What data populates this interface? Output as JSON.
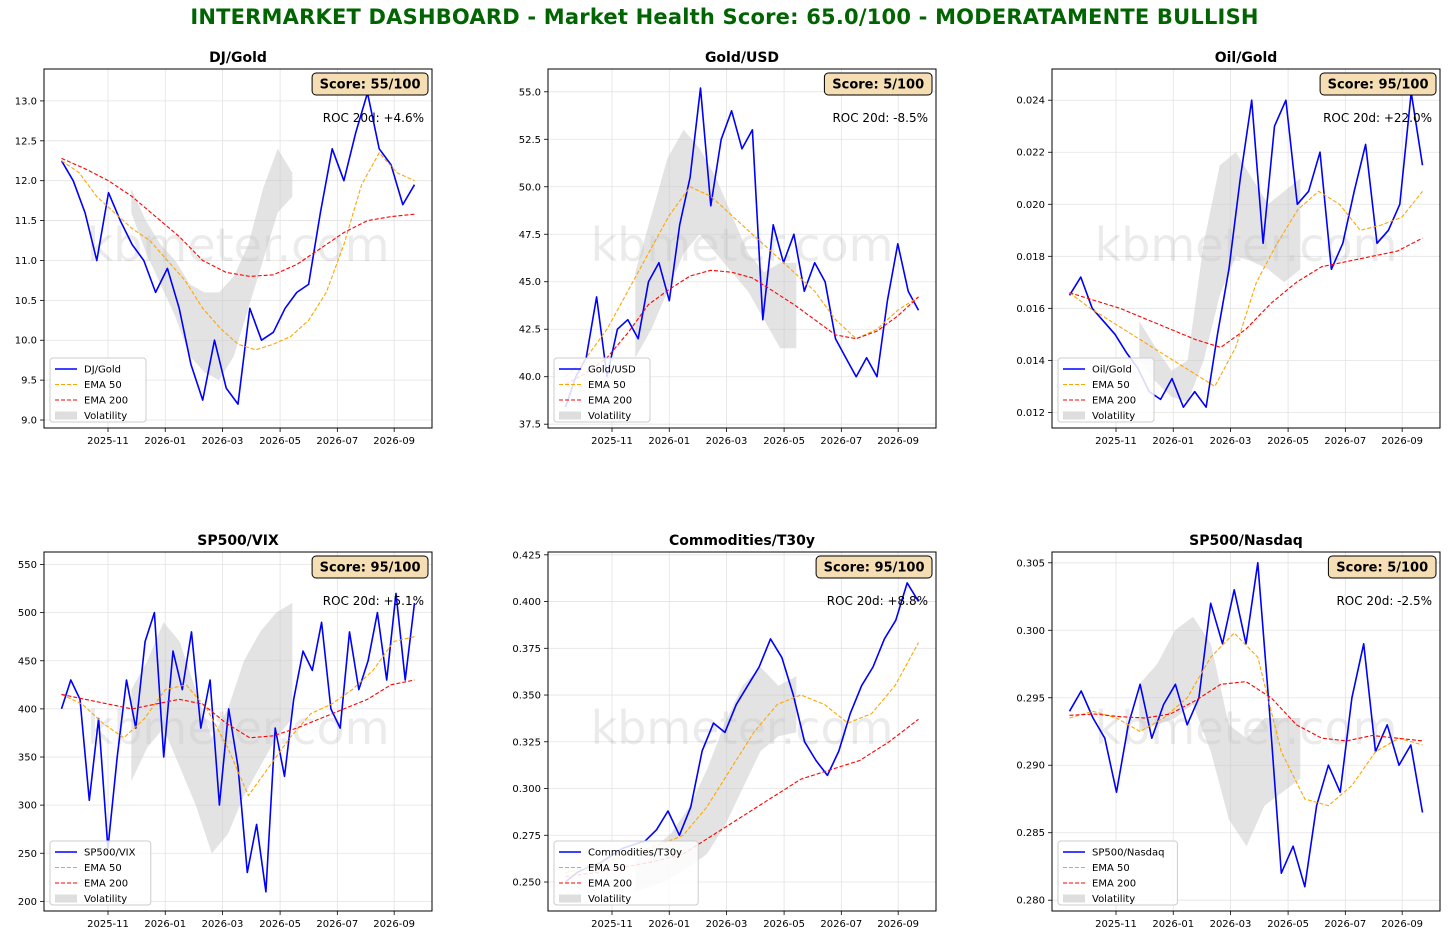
{
  "dashboard": {
    "title": "INTERMARKET DASHBOARD - Market Health Score: 65.0/100 - MODERATAMENTE BULLISH",
    "title_color": "#006400",
    "watermark": "kbmeter.com"
  },
  "legend_labels": {
    "ema50": "EMA 50",
    "ema200": "EMA 200",
    "volatility": "Volatility"
  },
  "colors": {
    "price": "#0000ff",
    "ema50": "#ffa500",
    "ema200": "#ff0000",
    "volatility": "#c8c8c8",
    "score_box": "#f5deb3"
  },
  "x_tick_labels": [
    "2025-11",
    "2026-01",
    "2026-03",
    "2026-05",
    "2026-07",
    "2026-09"
  ],
  "chart_data": [
    {
      "type": "line",
      "title": "DJ/Gold",
      "score_text": "Score: 55/100",
      "roc_text": "ROC 20d: +4.6%",
      "ylim": [
        8.9,
        13.4
      ],
      "yticks": [
        9.0,
        9.5,
        10.0,
        10.5,
        11.0,
        11.5,
        12.0,
        12.5,
        13.0
      ],
      "ytick_labels": [
        "9.0",
        "9.5",
        "10.0",
        "10.5",
        "11.0",
        "11.5",
        "12.0",
        "12.5",
        "13.0"
      ],
      "series": [
        {
          "name": "DJ/Gold",
          "role": "price",
          "values": [
            12.25,
            12.0,
            11.6,
            11.0,
            11.85,
            11.5,
            11.2,
            11.0,
            10.6,
            10.9,
            10.4,
            9.7,
            9.25,
            10.0,
            9.4,
            9.2,
            10.4,
            10.0,
            10.1,
            10.4,
            10.6,
            10.7,
            11.6,
            12.4,
            12.0,
            12.6,
            13.1,
            12.4,
            12.2,
            11.7,
            11.95
          ]
        },
        {
          "name": "EMA 50",
          "role": "ema50",
          "values": [
            12.25,
            12.1,
            11.8,
            11.6,
            11.4,
            11.25,
            11.0,
            10.75,
            10.4,
            10.15,
            9.95,
            9.88,
            9.95,
            10.05,
            10.25,
            10.6,
            11.2,
            11.95,
            12.35,
            12.1,
            12.0
          ]
        },
        {
          "name": "EMA 200",
          "role": "ema200",
          "values": [
            12.28,
            12.15,
            12.0,
            11.8,
            11.55,
            11.3,
            11.0,
            10.85,
            10.8,
            10.82,
            10.95,
            11.15,
            11.35,
            11.5,
            11.55,
            11.58
          ]
        }
      ],
      "volatility_lower": [
        11.6,
        11.1,
        10.7,
        10.3,
        9.8,
        9.6,
        9.5,
        9.8,
        10.4,
        11.0,
        11.6,
        11.8
      ],
      "volatility_upper": [
        11.9,
        11.5,
        11.2,
        11.0,
        10.7,
        10.6,
        10.6,
        10.8,
        11.2,
        11.9,
        12.4,
        12.1
      ]
    },
    {
      "type": "line",
      "title": "Gold/USD",
      "score_text": "Score: 5/100",
      "roc_text": "ROC 20d: -8.5%",
      "ylim": [
        37.3,
        56.2
      ],
      "yticks": [
        37.5,
        40.0,
        42.5,
        45.0,
        47.5,
        50.0,
        52.5,
        55.0
      ],
      "ytick_labels": [
        "37.5",
        "40.0",
        "42.5",
        "45.0",
        "47.5",
        "50.0",
        "52.5",
        "55.0"
      ],
      "series": [
        {
          "name": "Gold/USD",
          "role": "price",
          "values": [
            38.4,
            40.0,
            41.0,
            44.2,
            40.0,
            42.5,
            43.0,
            42.0,
            45.0,
            46.0,
            44.0,
            48.0,
            50.5,
            55.2,
            49.0,
            52.5,
            54.0,
            52.0,
            53.0,
            43.0,
            48.0,
            46.0,
            47.5,
            44.5,
            46.0,
            45.0,
            42.0,
            41.0,
            40.0,
            41.0,
            40.0,
            44.0,
            47.0,
            44.5,
            43.5
          ]
        },
        {
          "name": "EMA 50",
          "role": "ema50",
          "values": [
            40.0,
            41.0,
            42.5,
            44.5,
            46.5,
            48.5,
            50.0,
            49.5,
            48.5,
            47.5,
            46.5,
            45.5,
            44.5,
            43.0,
            42.0,
            42.5,
            43.5,
            44.2
          ]
        },
        {
          "name": "EMA 200",
          "role": "ema200",
          "values": [
            39.6,
            40.2,
            41.0,
            42.3,
            43.8,
            44.6,
            45.3,
            45.6,
            45.5,
            45.2,
            44.5,
            43.8,
            43.0,
            42.2,
            42.0,
            42.4,
            43.2,
            44.2
          ]
        }
      ],
      "volatility_lower": [
        41.0,
        42.5,
        44.5,
        46.5,
        47.5,
        46.5,
        45.5,
        44.5,
        43.0,
        41.5,
        41.5
      ],
      "volatility_upper": [
        45.5,
        48.5,
        51.5,
        53.0,
        52.0,
        50.5,
        48.5,
        46.5,
        45.5,
        46.0,
        46.0
      ]
    },
    {
      "type": "line",
      "title": "Oil/Gold",
      "score_text": "Score: 95/100",
      "roc_text": "ROC 20d: +22.0%",
      "ylim": [
        0.0114,
        0.0252
      ],
      "yticks": [
        0.012,
        0.014,
        0.016,
        0.018,
        0.02,
        0.022,
        0.024
      ],
      "ytick_labels": [
        "0.012",
        "0.014",
        "0.016",
        "0.018",
        "0.020",
        "0.022",
        "0.024"
      ],
      "series": [
        {
          "name": "Oil/Gold",
          "role": "price",
          "values": [
            0.0165,
            0.0172,
            0.016,
            0.0155,
            0.015,
            0.0143,
            0.0137,
            0.0128,
            0.0125,
            0.0133,
            0.0122,
            0.0128,
            0.0122,
            0.015,
            0.0175,
            0.021,
            0.024,
            0.0185,
            0.023,
            0.024,
            0.02,
            0.0205,
            0.022,
            0.0175,
            0.0185,
            0.0205,
            0.0223,
            0.0185,
            0.019,
            0.02,
            0.0243,
            0.0215
          ]
        },
        {
          "name": "EMA 50",
          "role": "ema50",
          "values": [
            0.0166,
            0.016,
            0.0155,
            0.015,
            0.0145,
            0.014,
            0.0135,
            0.013,
            0.0145,
            0.017,
            0.0185,
            0.0198,
            0.0205,
            0.02,
            0.019,
            0.0192,
            0.0195,
            0.0205
          ]
        },
        {
          "name": "EMA 200",
          "role": "ema200",
          "values": [
            0.0166,
            0.0163,
            0.016,
            0.0156,
            0.0152,
            0.0148,
            0.0145,
            0.0152,
            0.0162,
            0.017,
            0.0176,
            0.0178,
            0.018,
            0.0182,
            0.0187
          ]
        }
      ],
      "volatility_lower": [
        0.014,
        0.0132,
        0.0126,
        0.0124,
        0.014,
        0.0165,
        0.018,
        0.0178,
        0.0175,
        0.017,
        0.0175
      ],
      "volatility_upper": [
        0.0155,
        0.0145,
        0.0136,
        0.014,
        0.0185,
        0.0215,
        0.022,
        0.021,
        0.02,
        0.0205,
        0.021
      ]
    },
    {
      "type": "line",
      "title": "SP500/VIX",
      "score_text": "Score: 95/100",
      "roc_text": "ROC 20d: +5.1%",
      "ylim": [
        190,
        563
      ],
      "yticks": [
        200,
        250,
        300,
        350,
        400,
        450,
        500,
        550
      ],
      "ytick_labels": [
        "200",
        "250",
        "300",
        "350",
        "400",
        "450",
        "500",
        "550"
      ],
      "series": [
        {
          "name": "SP500/VIX",
          "role": "price",
          "values": [
            400,
            430,
            410,
            305,
            390,
            255,
            350,
            430,
            380,
            470,
            500,
            350,
            460,
            420,
            480,
            380,
            430,
            300,
            400,
            340,
            230,
            280,
            210,
            380,
            330,
            410,
            460,
            440,
            490,
            400,
            380,
            480,
            420,
            450,
            500,
            430,
            520,
            430,
            510
          ]
        },
        {
          "name": "EMA 50",
          "role": "ema50",
          "values": [
            415,
            405,
            385,
            370,
            390,
            420,
            425,
            400,
            360,
            310,
            340,
            370,
            395,
            405,
            420,
            440,
            470,
            475
          ]
        },
        {
          "name": "EMA 200",
          "role": "ema200",
          "values": [
            415,
            410,
            405,
            400,
            405,
            410,
            405,
            385,
            370,
            372,
            380,
            390,
            400,
            410,
            425,
            430
          ]
        }
      ],
      "volatility_lower": [
        325,
        360,
        380,
        340,
        300,
        250,
        270,
        310,
        340,
        370,
        390
      ],
      "volatility_upper": [
        420,
        450,
        490,
        470,
        420,
        370,
        400,
        450,
        480,
        500,
        510
      ]
    },
    {
      "type": "line",
      "title": "Commodities/T30y",
      "score_text": "Score: 95/100",
      "roc_text": "ROC 20d: +8.8%",
      "ylim": [
        0.2345,
        0.4265
      ],
      "yticks": [
        0.25,
        0.275,
        0.3,
        0.325,
        0.35,
        0.375,
        0.4,
        0.425
      ],
      "ytick_labels": [
        "0.250",
        "0.275",
        "0.300",
        "0.325",
        "0.350",
        "0.375",
        "0.400",
        "0.425"
      ],
      "series": [
        {
          "name": "Commodities/T30y",
          "role": "price",
          "values": [
            0.25,
            0.255,
            0.258,
            0.26,
            0.264,
            0.268,
            0.27,
            0.272,
            0.278,
            0.288,
            0.275,
            0.29,
            0.32,
            0.335,
            0.33,
            0.345,
            0.355,
            0.365,
            0.38,
            0.37,
            0.35,
            0.325,
            0.315,
            0.307,
            0.32,
            0.34,
            0.355,
            0.365,
            0.38,
            0.39,
            0.41,
            0.4
          ]
        },
        {
          "name": "EMA 50",
          "role": "ema50",
          "values": [
            0.255,
            0.258,
            0.262,
            0.266,
            0.27,
            0.275,
            0.29,
            0.31,
            0.33,
            0.345,
            0.35,
            0.345,
            0.335,
            0.34,
            0.355,
            0.378
          ]
        },
        {
          "name": "EMA 200",
          "role": "ema200",
          "values": [
            0.253,
            0.255,
            0.258,
            0.261,
            0.265,
            0.275,
            0.285,
            0.295,
            0.305,
            0.31,
            0.315,
            0.325,
            0.337
          ]
        }
      ],
      "volatility_lower": [
        0.245,
        0.248,
        0.252,
        0.258,
        0.265,
        0.28,
        0.3,
        0.32,
        0.328,
        0.33
      ],
      "volatility_upper": [
        0.262,
        0.268,
        0.276,
        0.29,
        0.31,
        0.335,
        0.355,
        0.365,
        0.355,
        0.36
      ]
    },
    {
      "type": "line",
      "title": "SP500/Nasdaq",
      "score_text": "Score: 5/100",
      "roc_text": "ROC 20d: -2.5%",
      "ylim": [
        0.2792,
        0.3058
      ],
      "yticks": [
        0.28,
        0.285,
        0.29,
        0.295,
        0.3,
        0.305
      ],
      "ytick_labels": [
        "0.280",
        "0.285",
        "0.290",
        "0.295",
        "0.300",
        "0.305"
      ],
      "series": [
        {
          "name": "SP500/Nasdaq",
          "role": "price",
          "values": [
            0.294,
            0.2955,
            0.2935,
            0.292,
            0.288,
            0.293,
            0.296,
            0.292,
            0.2945,
            0.296,
            0.293,
            0.295,
            0.302,
            0.299,
            0.303,
            0.299,
            0.305,
            0.294,
            0.282,
            0.284,
            0.281,
            0.287,
            0.29,
            0.288,
            0.295,
            0.299,
            0.291,
            0.293,
            0.29,
            0.2915,
            0.2865
          ]
        },
        {
          "name": "EMA 50",
          "role": "ema50",
          "values": [
            0.2935,
            0.294,
            0.2935,
            0.2925,
            0.2935,
            0.295,
            0.298,
            0.2998,
            0.298,
            0.291,
            0.2875,
            0.287,
            0.2885,
            0.291,
            0.292,
            0.2915
          ]
        },
        {
          "name": "EMA 200",
          "role": "ema200",
          "values": [
            0.2937,
            0.2938,
            0.2936,
            0.2935,
            0.2938,
            0.2948,
            0.296,
            0.2962,
            0.295,
            0.293,
            0.292,
            0.2918,
            0.2922,
            0.292,
            0.2918
          ]
        }
      ],
      "volatility_lower": [
        0.2925,
        0.293,
        0.2935,
        0.2945,
        0.291,
        0.286,
        0.284,
        0.287,
        0.288,
        0.289
      ],
      "volatility_upper": [
        0.296,
        0.2975,
        0.3,
        0.301,
        0.299,
        0.293,
        0.292,
        0.2935,
        0.2935,
        0.2935
      ]
    }
  ]
}
